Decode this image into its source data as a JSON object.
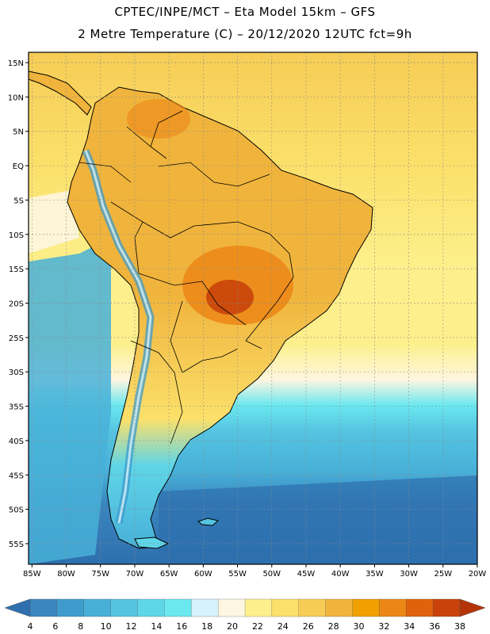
{
  "header": {
    "line1": "CPTEC/INPE/MCT –  Eta Model 15km – GFS",
    "line2": "2 Metre Temperature (C) – 20/12/2020 12UTC fct=9h"
  },
  "map": {
    "lat_labels": [
      "15N",
      "10N",
      "5N",
      "EQ",
      "5S",
      "10S",
      "15S",
      "20S",
      "25S",
      "30S",
      "35S",
      "40S",
      "45S",
      "50S",
      "55S"
    ],
    "lon_labels": [
      "85W",
      "80W",
      "75W",
      "70W",
      "65W",
      "60W",
      "55W",
      "50W",
      "45W",
      "40W",
      "35W",
      "30W",
      "25W",
      "20W"
    ],
    "extent": {
      "lon_min": -85.5,
      "lon_max": -20,
      "lat_min": -58,
      "lat_max": 16.5
    }
  },
  "colorbar": {
    "labels": [
      "4",
      "6",
      "8",
      "10",
      "12",
      "14",
      "16",
      "18",
      "20",
      "22",
      "24",
      "26",
      "28",
      "30",
      "32",
      "34",
      "36",
      "38"
    ],
    "colors": [
      "#2e6fae",
      "#3a86bf",
      "#3f9bcc",
      "#48b0d8",
      "#55c4e0",
      "#5fd6e8",
      "#6ae8f0",
      "#d6f3fb",
      "#fdf6e0",
      "#fdf08c",
      "#fbe06a",
      "#f6cc56",
      "#f0b43c",
      "#f0a000",
      "#ec8616",
      "#e0620c",
      "#c8420a",
      "#b43408"
    ]
  },
  "colors": {
    "land_border": "#000000",
    "grid": "#888888"
  }
}
